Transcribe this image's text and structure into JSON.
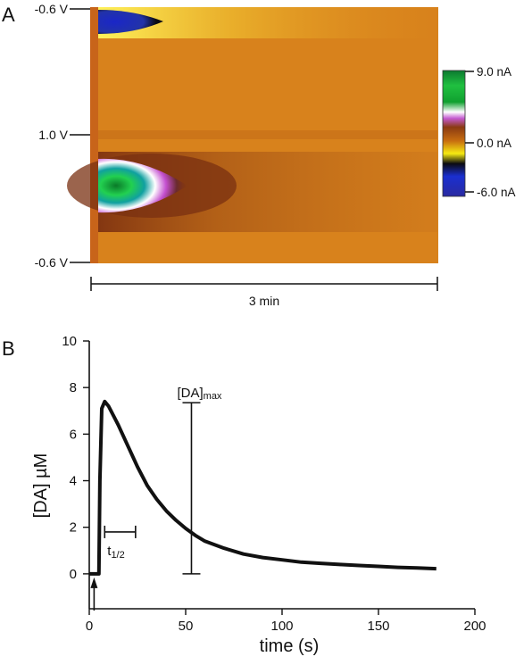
{
  "chart_data": [
    {
      "type": "heatmap",
      "panel_label": "A",
      "y_tick_labels": [
        "-0.6 V",
        "1.0 V",
        "-0.6 V"
      ],
      "colorbar": {
        "tick_labels": [
          "9.0 nA",
          "0.0 nA",
          "-6.0 nA"
        ],
        "range": [
          -6.0,
          9.0
        ],
        "colors": [
          "#1a2fd0",
          "#0b0b10",
          "#f6ea12",
          "#c86e10",
          "#8a3a12",
          "#c45ad0",
          "#ffffff",
          "#10a030",
          "#20c040",
          "#0c7a30"
        ]
      },
      "x_scale_label": "3 min",
      "background_color": "#d8821c"
    },
    {
      "type": "line",
      "panel_label": "B",
      "xlabel": "time (s)",
      "ylabel": "[DA] µM",
      "xlim": [
        0,
        200
      ],
      "ylim": [
        -1.5,
        10
      ],
      "x_ticks": [
        0,
        50,
        100,
        150,
        200
      ],
      "y_ticks": [
        0,
        2,
        4,
        6,
        8,
        10
      ],
      "x_tick_labels": [
        "0",
        "50",
        "100",
        "150",
        "200"
      ],
      "y_tick_labels": [
        "0",
        "2",
        "4",
        "6",
        "8",
        "10"
      ],
      "series": [
        {
          "x": [
            0,
            5,
            5.5,
            6.5,
            8,
            10,
            15,
            20,
            25,
            30,
            35,
            40,
            45,
            50,
            55,
            60,
            70,
            80,
            90,
            100,
            110,
            120,
            130,
            140,
            150,
            160,
            170,
            180
          ],
          "values": [
            0,
            0,
            4.0,
            7.1,
            7.4,
            7.2,
            6.4,
            5.5,
            4.6,
            3.8,
            3.2,
            2.7,
            2.3,
            1.95,
            1.65,
            1.4,
            1.1,
            0.85,
            0.7,
            0.6,
            0.5,
            0.45,
            0.4,
            0.36,
            0.32,
            0.28,
            0.25,
            0.22
          ]
        }
      ],
      "annotations": {
        "t_half": {
          "label_base": "t",
          "label_sub": "1/2",
          "x_start": 8,
          "x_end": 24,
          "y": 1.8
        },
        "da_max": {
          "label_base": "[DA]",
          "label_sub": "max",
          "x": 53,
          "y_low": 0,
          "y_high": 7.35
        },
        "stimulus_x": 2.5
      }
    }
  ]
}
